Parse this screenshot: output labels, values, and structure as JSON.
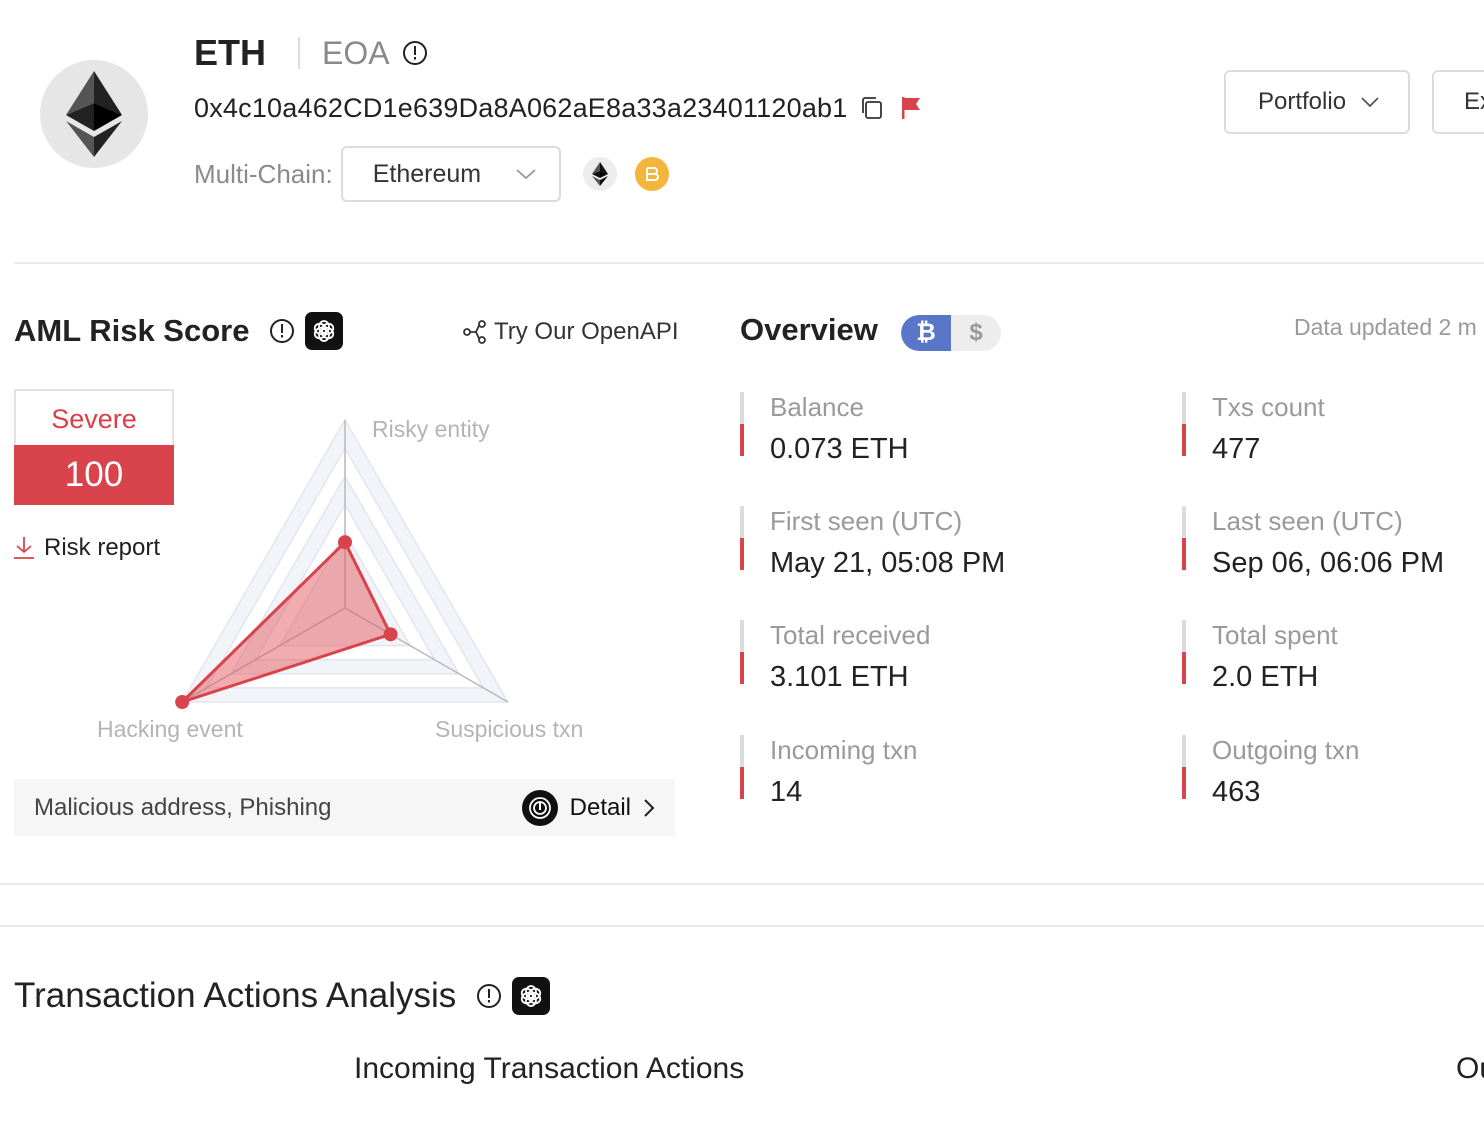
{
  "header": {
    "coin": "ETH",
    "account_type": "EOA",
    "address": "0x4c10a462CD1e639Da8A062aE8a33a23401120ab1",
    "multichain_label": "Multi-Chain:",
    "chain_selected": "Ethereum",
    "portfolio_label": "Portfolio",
    "ex_label": "Ex"
  },
  "aml": {
    "title": "AML Risk Score",
    "openapi_label": "Try Our OpenAPI",
    "level": "Severe",
    "score": "100",
    "risk_report_label": "Risk report",
    "radar_labels": {
      "top": "Risky entity",
      "left": "Hacking event",
      "right": "Suspicious txn"
    },
    "radar_values": {
      "risky_entity": 0.35,
      "hacking_event": 1.0,
      "suspicious_txn": 0.28
    },
    "tags": "Malicious address, Phishing",
    "detail_label": "Detail"
  },
  "overview": {
    "title": "Overview",
    "btc_symbol": "₿",
    "usd_symbol": "$",
    "updated": "Data updated 2 m",
    "stats": [
      {
        "label": "Balance",
        "value": "0.073 ETH"
      },
      {
        "label": "Txs count",
        "value": "477"
      },
      {
        "label": "First seen (UTC)",
        "value": "May 21, 05:08 PM"
      },
      {
        "label": "Last seen (UTC)",
        "value": "Sep 06, 06:06 PM"
      },
      {
        "label": "Total received",
        "value": "3.101 ETH"
      },
      {
        "label": "Total spent",
        "value": "2.0 ETH"
      },
      {
        "label": "Incoming txn",
        "value": "14"
      },
      {
        "label": "Outgoing txn",
        "value": "463"
      }
    ]
  },
  "tx_actions": {
    "title": "Transaction Actions Analysis",
    "incoming_title": "Incoming Transaction Actions",
    "outgoing_title": "Ou"
  },
  "colors": {
    "risk_red": "#d9434b",
    "btc_blue": "#5a76c8",
    "bch_orange": "#f4b63a"
  }
}
